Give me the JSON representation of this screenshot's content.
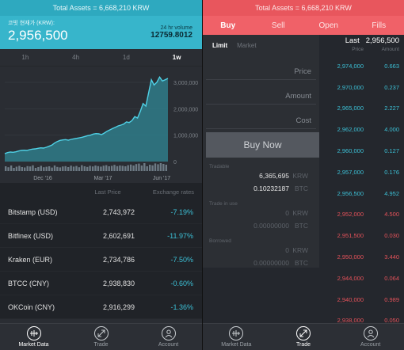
{
  "total_assets": "Total Assets = 6,668,210 KRW",
  "market": {
    "price_label": "코빗 현재가 (KRW):",
    "price": "2,956,500",
    "volume_label": "24 hr volume",
    "volume": "12759.8012",
    "timeframes": [
      {
        "label": "1h",
        "active": false
      },
      {
        "label": "4h",
        "active": false
      },
      {
        "label": "1d",
        "active": false
      },
      {
        "label": "1w",
        "active": true
      }
    ]
  },
  "chart_data": {
    "type": "area",
    "y_ticks": [
      "3,000,000",
      "2,000,000",
      "1,000,000",
      "0"
    ],
    "ylim": [
      0,
      3300000
    ],
    "x_labels": [
      "Dec '16",
      "Mar '17",
      "Jun '17"
    ],
    "series": [
      {
        "values": [
          300000,
          340000,
          360000,
          350000,
          370000,
          400000,
          420000,
          430000,
          420000,
          450000,
          470000,
          480000,
          500000,
          520000,
          510000,
          540000,
          580000,
          620000,
          700000,
          760000,
          800000,
          820000,
          830000,
          810000,
          840000,
          860000,
          880000,
          900000,
          920000,
          950000,
          980000,
          1000000,
          1040000,
          1060000,
          1050000,
          1020000,
          1080000,
          1150000,
          1200000,
          1250000,
          1300000,
          1350000,
          1380000,
          1420000,
          1500000,
          1480000,
          1550000,
          1700000,
          1650000,
          1900000,
          2200000,
          2100000,
          2600000,
          3100000,
          2900000,
          3000000,
          3200000,
          3050000,
          3100000,
          3150000
        ]
      },
      {
        "type": "bar",
        "values": [
          60,
          48,
          70,
          40,
          55,
          66,
          50,
          45,
          62,
          58,
          72,
          40,
          50,
          66,
          48,
          54,
          60,
          44,
          70,
          52,
          46,
          58,
          62,
          50,
          68,
          56,
          64,
          48,
          74,
          60,
          52,
          66,
          58,
          70,
          62,
          56,
          68,
          74,
          60,
          66,
          78,
          62,
          70,
          66,
          60,
          74,
          82,
          70,
          88,
          94,
          70,
          100,
          60,
          80,
          72,
          96,
          86,
          100,
          90,
          80
        ]
      }
    ],
    "colors": {
      "line": "#4fd1e6",
      "fill": "#2f7d8a",
      "volume": "#6d7a84"
    }
  },
  "exchanges": {
    "header": [
      "Last Price",
      "Exchange rates"
    ],
    "rows": [
      {
        "name": "Bitstamp (USD)",
        "price": "2,743,972",
        "rate": "-7.19%"
      },
      {
        "name": "Bitfinex (USD)",
        "price": "2,602,691",
        "rate": "-11.97%"
      },
      {
        "name": "Kraken (EUR)",
        "price": "2,734,786",
        "rate": "-7.50%"
      },
      {
        "name": "BTCC (CNY)",
        "price": "2,938,830",
        "rate": "-0.60%"
      },
      {
        "name": "OKCoin (CNY)",
        "price": "2,916,299",
        "rate": "-1.36%"
      }
    ]
  },
  "nav": [
    {
      "label": "Market Data",
      "icon": "market-data-icon"
    },
    {
      "label": "Trade",
      "icon": "trade-icon"
    },
    {
      "label": "Account",
      "icon": "account-icon"
    }
  ],
  "trade": {
    "tabs": [
      {
        "label": "Buy",
        "active": true
      },
      {
        "label": "Sell",
        "active": false
      },
      {
        "label": "Open",
        "active": false
      },
      {
        "label": "Fills",
        "active": false
      }
    ],
    "modes": [
      {
        "label": "Limit",
        "active": true
      },
      {
        "label": "Market",
        "active": false
      }
    ],
    "fields": {
      "price_placeholder": "Price",
      "amount_placeholder": "Amount",
      "cost_placeholder": "Cost"
    },
    "buy_button": "Buy Now",
    "balances": {
      "tradable_title": "Tradable",
      "tradable_krw": "6,365,695",
      "tradable_btc": "0.10232187",
      "in_use_title": "Trade in use",
      "in_use_krw": "0",
      "in_use_btc": "0.00000000",
      "borrowed_title": "Borrowed",
      "borrowed_krw": "0",
      "borrowed_btc": "0.00000000",
      "krw": "KRW",
      "btc": "BTC"
    }
  },
  "orderbook": {
    "last_label": "Last",
    "last_price": "2,956,500",
    "header_price": "Price",
    "header_amount": "Amount",
    "asks": [
      {
        "price": "2,974,000",
        "amount": "0.663"
      },
      {
        "price": "2,970,000",
        "amount": "0.237"
      },
      {
        "price": "2,965,000",
        "amount": "2.227"
      },
      {
        "price": "2,962,000",
        "amount": "4.000"
      },
      {
        "price": "2,960,000",
        "amount": "0.127"
      },
      {
        "price": "2,957,000",
        "amount": "0.176"
      },
      {
        "price": "2,956,500",
        "amount": "4.952"
      }
    ],
    "bids": [
      {
        "price": "2,952,000",
        "amount": "4.500"
      },
      {
        "price": "2,951,500",
        "amount": "0.030"
      },
      {
        "price": "2,950,000",
        "amount": "3.440"
      },
      {
        "price": "2,944,000",
        "amount": "0.064"
      },
      {
        "price": "2,940,000",
        "amount": "0.989"
      },
      {
        "price": "2,938,000",
        "amount": "0.050"
      }
    ]
  }
}
